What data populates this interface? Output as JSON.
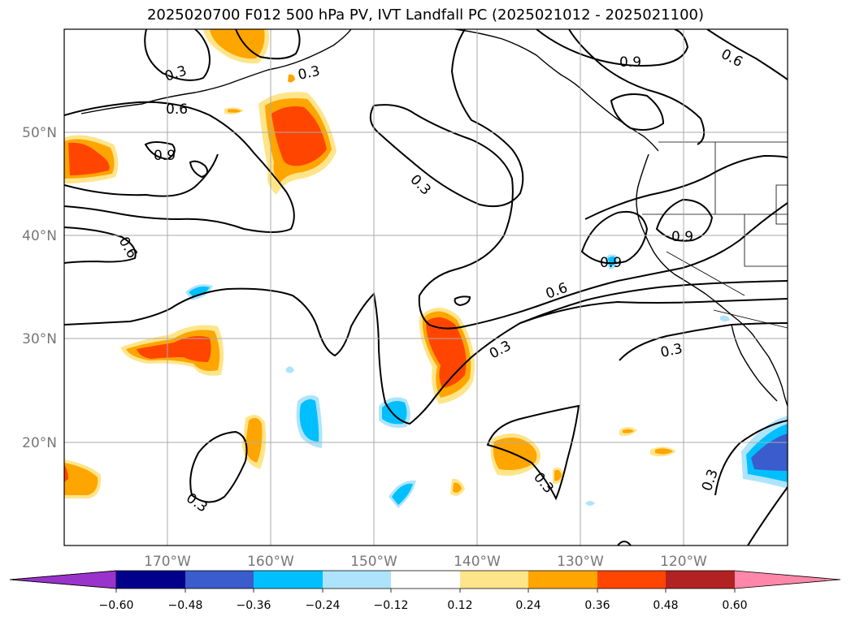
{
  "title": "2025020700 F012 500 hPa PV, IVT Landfall PC (2025021012 - 2025021100)",
  "lat_labels": [
    "50°N",
    "40°N",
    "30°N",
    "20°N"
  ],
  "lon_labels": [
    "170°W",
    "160°W",
    "150°W",
    "140°W",
    "130°W",
    "120°W"
  ],
  "contour_labels": [
    "0.3",
    "0.3",
    "0.6",
    "0.9",
    "0.6",
    "0.3",
    "0.9",
    "0.6",
    "0.9",
    "0.9",
    "0.6",
    "0.3",
    "0.3",
    "0.3",
    "0.3",
    "0.3"
  ],
  "colorbar": {
    "ticks": [
      "−0.60",
      "−0.48",
      "−0.36",
      "−0.24",
      "−0.12",
      "0.12",
      "0.24",
      "0.36",
      "0.48",
      "0.60"
    ],
    "colors": [
      "#9933cc",
      "#00008b",
      "#3a5ccc",
      "#00bfff",
      "#aee4fb",
      "#ffffff",
      "#ffe58a",
      "#ffa500",
      "#ff4500",
      "#b22222",
      "#ff88aa"
    ]
  },
  "palette": {
    "neg_light": "#aee4fb",
    "neg_mid": "#00bfff",
    "neg_strong": "#3a5ccc",
    "pos_light": "#ffe58a",
    "pos_mid": "#ffa500",
    "pos_strong": "#ff4500",
    "grid": "#aaaaaa",
    "axis_text": "#777777"
  }
}
